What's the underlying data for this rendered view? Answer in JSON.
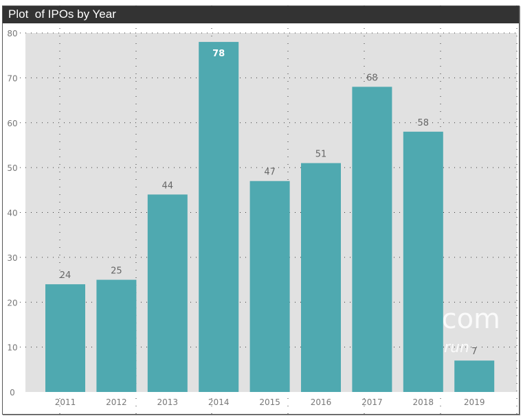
{
  "chart_data": {
    "type": "bar",
    "title": "Plot  of IPOs by Year",
    "categories": [
      "2011",
      "2012",
      "2013",
      "2014",
      "2015",
      "2016",
      "2017",
      "2018",
      "2019"
    ],
    "values": [
      24,
      25,
      44,
      78,
      47,
      51,
      68,
      58,
      7
    ],
    "data_labels": [
      "24",
      "25",
      "44",
      "78",
      "47",
      "51",
      "68",
      "58",
      "7"
    ],
    "xlabel": "",
    "ylabel": "",
    "ylim": [
      0,
      80
    ],
    "yticks": [
      "0",
      "10",
      "20",
      "30",
      "40",
      "50",
      "60",
      "70",
      "80"
    ],
    "grid": true,
    "legend": "none",
    "colors": {
      "bar": "#4fa9b0",
      "plot_bg": "#e1e1e1",
      "title_bg": "#333333"
    }
  },
  "watermark": {
    "line1": "s.com",
    "line2": "run"
  }
}
